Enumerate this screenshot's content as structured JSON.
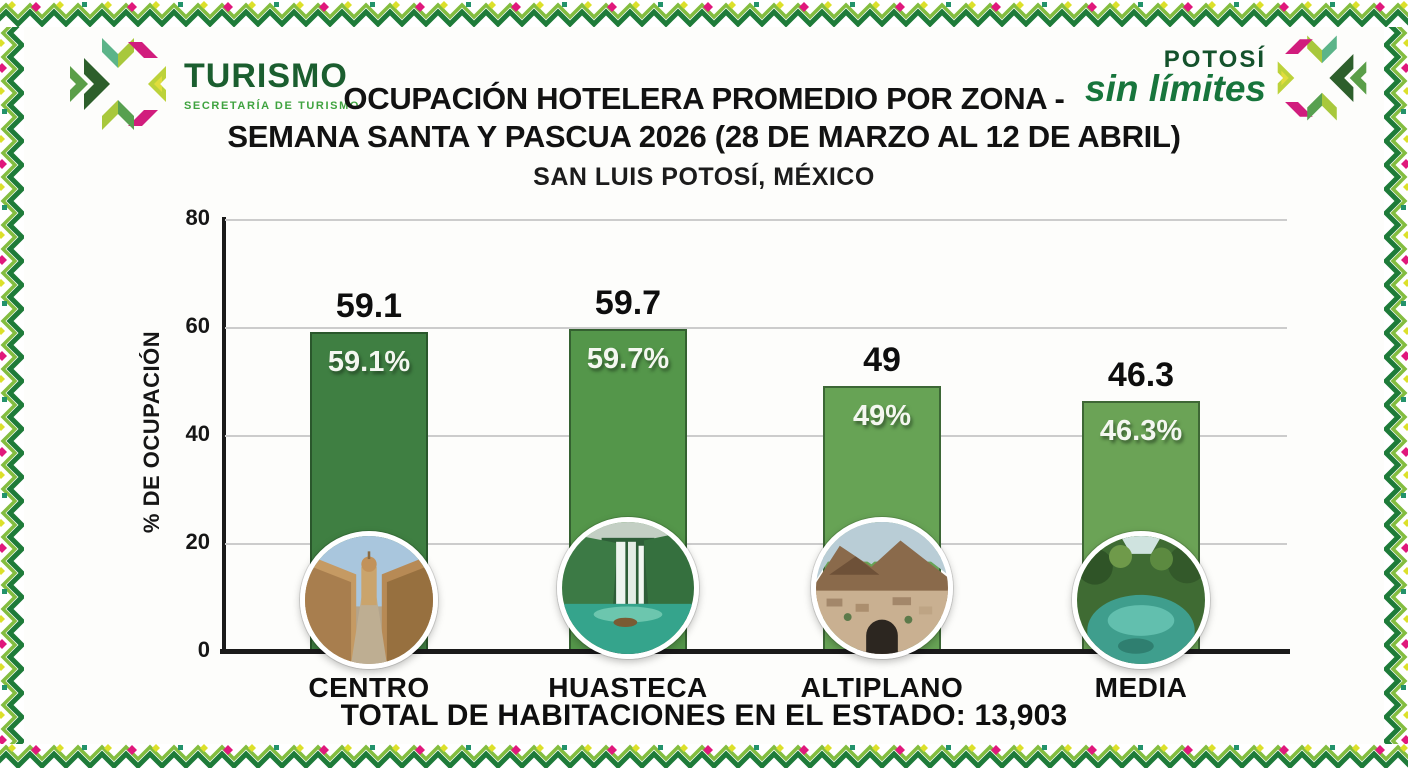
{
  "header": {
    "turismo_logo": {
      "title": "TURISMO",
      "subtitle": "SECRETARÍA DE TURISMO"
    },
    "potosi_logo": {
      "line1": "POTOSÍ",
      "line2": "sin límites"
    },
    "title_line1": "OCUPACIÓN HOTELERA PROMEDIO POR ZONA -",
    "title_line2": "SEMANA SANTA Y PASCUA 2026 (28 DE MARZO AL 12 DE ABRIL)",
    "subtitle": "SAN LUIS POTOSÍ, MÉXICO"
  },
  "chart_data": {
    "type": "bar",
    "title": "OCUPACIÓN HOTELERA PROMEDIO POR ZONA - SEMANA SANTA Y PASCUA 2026 (28 DE MARZO AL 12 DE ABRIL)",
    "subtitle": "SAN LUIS POTOSÍ, MÉXICO",
    "categories": [
      "CENTRO",
      "HUASTECA",
      "ALTIPLANO",
      "MEDIA"
    ],
    "values": [
      59.1,
      59.7,
      49,
      46.3
    ],
    "bar_labels_above": [
      "59.1",
      "59.7",
      "49",
      "46.3"
    ],
    "bar_labels_inside": [
      "59.1%",
      "59.7%",
      "49%",
      "46.3%"
    ],
    "xlabel": "",
    "ylabel": "% DE OCUPACIÓN",
    "yticks": [
      0,
      20,
      40,
      60,
      80
    ],
    "ylim": [
      0,
      80
    ],
    "grid": true,
    "legend": "none",
    "bar_colors": [
      "#3f7f42",
      "#54964a",
      "#67a355",
      "#6ba356"
    ],
    "circle_images": [
      "centro-colonial-street",
      "huasteca-waterfall",
      "altiplano-desert-town",
      "media-river-spring"
    ]
  },
  "footer": {
    "total_text": "TOTAL DE HABITACIONES EN EL ESTADO: 13,903"
  },
  "colors": {
    "brand_dark_green": "#1b5e2f",
    "brand_green": "#3fa33f",
    "pattern_magenta": "#e0187c",
    "pattern_yellow": "#dce02a",
    "axis_black": "#1a1a1a"
  }
}
